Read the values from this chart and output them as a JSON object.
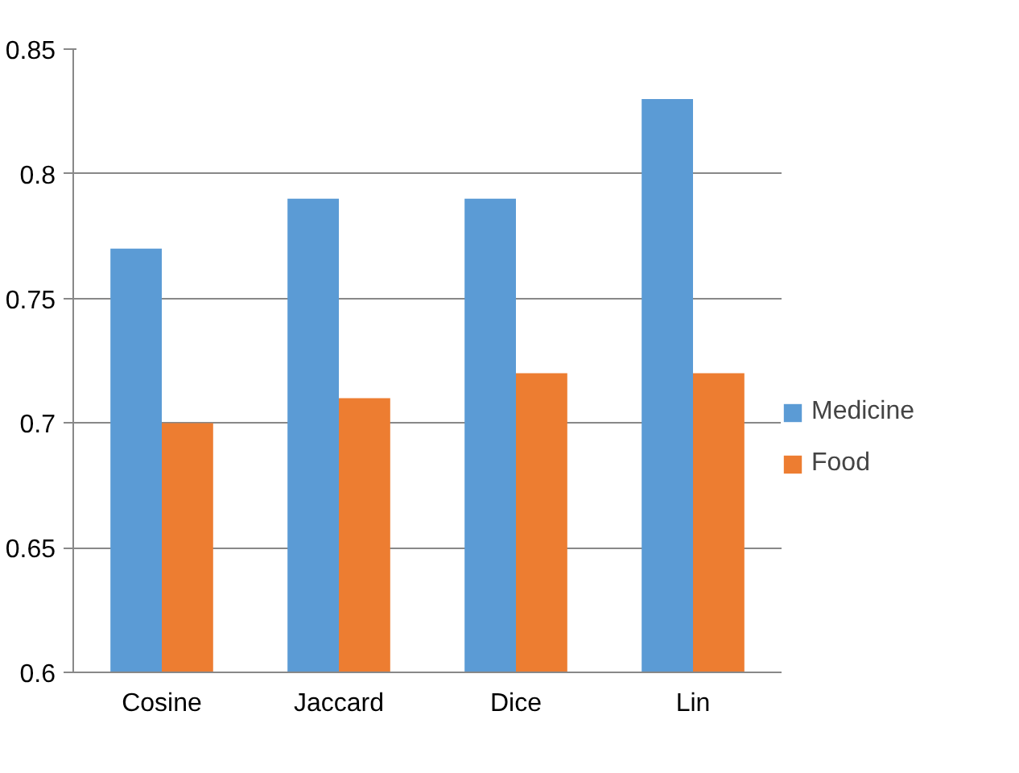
{
  "chart_data": {
    "type": "bar",
    "categories": [
      "Cosine",
      "Jaccard",
      "Dice",
      "Lin"
    ],
    "series": [
      {
        "name": "Medicine",
        "color": "#5b9bd5",
        "values": [
          0.77,
          0.79,
          0.79,
          0.83
        ]
      },
      {
        "name": "Food",
        "color": "#ed7d31",
        "values": [
          0.7,
          0.71,
          0.72,
          0.72
        ]
      }
    ],
    "ylim": [
      0.6,
      0.85
    ],
    "yticks": [
      0.6,
      0.65,
      0.7,
      0.75,
      0.8,
      0.85
    ],
    "grid": "y",
    "legend": "right"
  }
}
